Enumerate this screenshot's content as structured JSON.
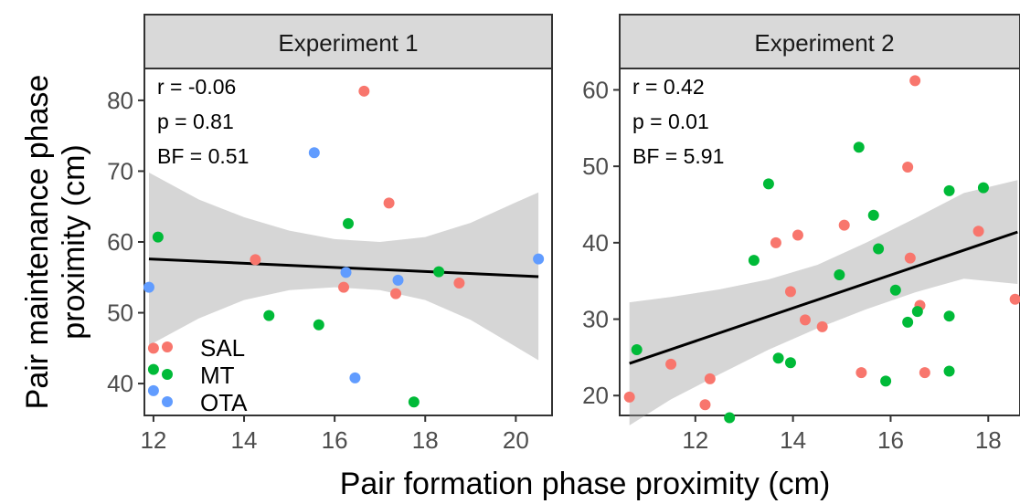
{
  "chart_data": {
    "type": "scatter",
    "xlabel": "Pair formation phase proximity (cm)",
    "ylabel": [
      "Pair maintenance phase",
      "proximity (cm)"
    ],
    "legend": {
      "placement": "bottom-left of Experiment 1 panel",
      "entries": [
        {
          "name": "SAL",
          "color": "#F8766D"
        },
        {
          "name": "MT",
          "color": "#00BA38"
        },
        {
          "name": "OTA",
          "color": "#619CFF"
        }
      ]
    },
    "panels": [
      {
        "title": "Experiment 1",
        "xlim": [
          11.8,
          20.8
        ],
        "ylim": [
          35.5,
          84.5
        ],
        "xticks": [
          12,
          14,
          16,
          18,
          20
        ],
        "yticks": [
          40,
          50,
          60,
          70,
          80
        ],
        "stats": [
          "r = -0.06",
          "p =  0.81",
          "BF = 0.51"
        ],
        "fit": {
          "x": [
            11.9,
            20.5
          ],
          "y": [
            57.6,
            55.1
          ]
        },
        "band": {
          "x": [
            11.9,
            13,
            14,
            15,
            16,
            17,
            18,
            19,
            20,
            20.5
          ],
          "upper": [
            69.8,
            66.0,
            63.5,
            61.6,
            60.4,
            60.0,
            60.7,
            62.7,
            65.6,
            67.0
          ],
          "lower": [
            45.4,
            49.2,
            51.8,
            53.2,
            53.6,
            53.2,
            51.8,
            49.0,
            45.2,
            43.3
          ]
        },
        "series": [
          {
            "name": "SAL",
            "color": "#F8766D",
            "points": [
              [
                16.65,
                81.3
              ],
              [
                17.2,
                65.5
              ],
              [
                14.25,
                57.5
              ],
              [
                16.2,
                53.6
              ],
              [
                17.35,
                52.7
              ],
              [
                18.75,
                54.2
              ],
              [
                12.0,
                45.0
              ]
            ]
          },
          {
            "name": "MT",
            "color": "#00BA38",
            "points": [
              [
                12.1,
                60.7
              ],
              [
                16.3,
                62.6
              ],
              [
                14.55,
                49.6
              ],
              [
                15.65,
                48.3
              ],
              [
                18.3,
                55.8
              ],
              [
                17.75,
                37.4
              ],
              [
                12.0,
                42.0
              ]
            ]
          },
          {
            "name": "OTA",
            "color": "#619CFF",
            "points": [
              [
                15.55,
                72.6
              ],
              [
                11.9,
                53.6
              ],
              [
                16.25,
                55.7
              ],
              [
                17.4,
                54.6
              ],
              [
                16.45,
                40.8
              ],
              [
                20.5,
                57.6
              ],
              [
                12.0,
                39.0
              ]
            ]
          }
        ]
      },
      {
        "title": "Experiment 2",
        "xlim": [
          10.45,
          18.65
        ],
        "ylim": [
          17.4,
          62.8
        ],
        "xticks": [
          12,
          14,
          16,
          18
        ],
        "yticks": [
          20,
          30,
          40,
          50,
          60
        ],
        "stats": [
          "r = 0.42",
          "p =  0.01",
          "BF = 5.91"
        ],
        "fit": {
          "x": [
            10.65,
            18.6
          ],
          "y": [
            24.2,
            41.4
          ]
        },
        "band": {
          "x": [
            10.65,
            11.5,
            12.5,
            13.5,
            14.5,
            15.5,
            16.5,
            17.5,
            18.6
          ],
          "upper": [
            32.2,
            32.9,
            33.9,
            35.2,
            37.1,
            40.0,
            43.2,
            46.5,
            48.2
          ],
          "lower": [
            16.1,
            19.5,
            22.8,
            26.0,
            28.8,
            31.3,
            33.5,
            35.3,
            34.6
          ]
        },
        "series": [
          {
            "name": "SAL",
            "color": "#F8766D",
            "points": [
              [
                16.5,
                61.2
              ],
              [
                16.35,
                49.9
              ],
              [
                15.05,
                42.3
              ],
              [
                14.1,
                41.0
              ],
              [
                13.65,
                40.0
              ],
              [
                17.8,
                41.5
              ],
              [
                16.4,
                38.0
              ],
              [
                13.95,
                33.6
              ],
              [
                14.25,
                29.9
              ],
              [
                14.6,
                29.0
              ],
              [
                16.6,
                31.8
              ],
              [
                18.55,
                32.6
              ],
              [
                11.5,
                24.1
              ],
              [
                12.3,
                22.2
              ],
              [
                12.2,
                18.8
              ],
              [
                10.65,
                19.8
              ],
              [
                15.4,
                23.0
              ],
              [
                16.7,
                23.0
              ]
            ]
          },
          {
            "name": "MT",
            "color": "#00BA38",
            "points": [
              [
                15.35,
                52.5
              ],
              [
                13.5,
                47.7
              ],
              [
                17.2,
                46.8
              ],
              [
                17.9,
                47.2
              ],
              [
                15.65,
                43.6
              ],
              [
                15.75,
                39.2
              ],
              [
                13.2,
                37.7
              ],
              [
                14.95,
                35.8
              ],
              [
                16.1,
                33.8
              ],
              [
                16.55,
                31.0
              ],
              [
                16.35,
                29.6
              ],
              [
                17.2,
                30.4
              ],
              [
                10.8,
                26.0
              ],
              [
                13.7,
                24.9
              ],
              [
                13.95,
                24.3
              ],
              [
                15.9,
                21.9
              ],
              [
                17.2,
                23.2
              ],
              [
                12.7,
                17.1
              ]
            ]
          }
        ]
      }
    ]
  }
}
